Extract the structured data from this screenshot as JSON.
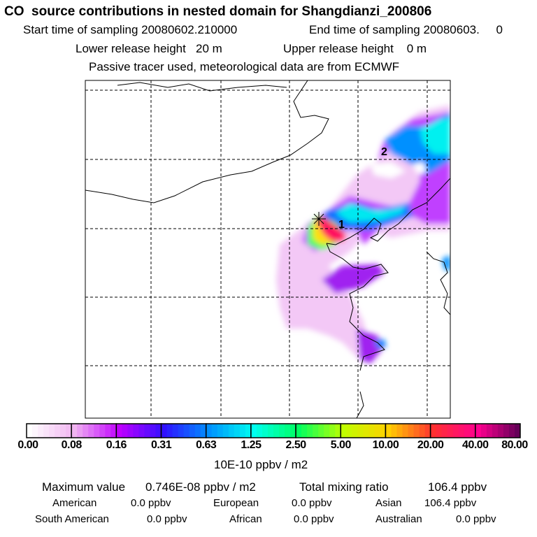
{
  "header": {
    "title": "CO  source contributions in nested domain for Shangdianzi_200806",
    "start_label": "Start time of sampling 20080602.210000",
    "end_label": "End time of sampling 20080603.     0",
    "lower_label": "Lower release height   20 m",
    "upper_label": "Upper release height    0 m",
    "tracer_label": "Passive tracer used, meteorological data are from ECMWF"
  },
  "chart_data": {
    "type": "heatmap",
    "title": "CO  source contributions in nested domain for Shangdianzi_200806",
    "markers": [
      "1",
      "2"
    ],
    "colorbar": {
      "ticks": [
        "0.00",
        "0.08",
        "0.16",
        "0.31",
        "0.63",
        "1.25",
        "2.50",
        "5.00",
        "10.00",
        "20.00",
        "40.00",
        "80.00"
      ],
      "colors": [
        "#ffffff",
        "#f0b4f0",
        "#c000ff",
        "#3010ff",
        "#0090ff",
        "#00fff0",
        "#00ff60",
        "#c0ff00",
        "#ffd000",
        "#ff3030",
        "#ff0090",
        "#500050"
      ],
      "unit": "10E-10 ppbv / m2"
    },
    "grid": true
  },
  "stats": {
    "max_label": "Maximum value",
    "max_value": "0.746E-08 ppbv / m2",
    "total_label": "Total mixing ratio",
    "total_value": "106.4 ppbv",
    "regions": [
      {
        "name": "American",
        "value": "0.0 ppbv"
      },
      {
        "name": "European",
        "value": "0.0 ppbv"
      },
      {
        "name": "Asian",
        "value": "106.4 ppbv"
      },
      {
        "name": "South American",
        "value": "0.0 ppbv"
      },
      {
        "name": "African",
        "value": "0.0 ppbv"
      },
      {
        "name": "Australian",
        "value": "0.0 ppbv"
      }
    ]
  }
}
